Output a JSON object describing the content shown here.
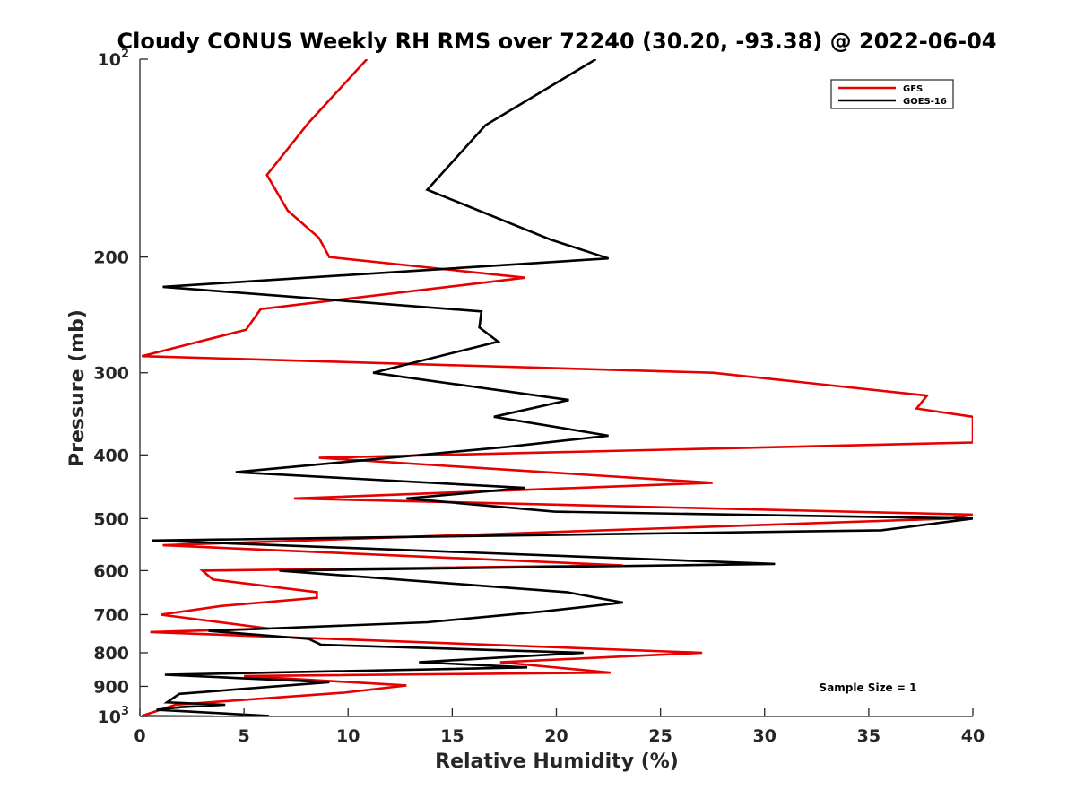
{
  "chart_data": {
    "type": "line",
    "title": "Cloudy CONUS Weekly RH RMS over 72240 (30.20, -93.38) @ 2022-06-04",
    "xlabel": "Relative Humidity (%)",
    "ylabel": "Pressure (mb)",
    "xlim": [
      0,
      40
    ],
    "ylim": [
      100,
      1000
    ],
    "yscale": "log",
    "y_reversed": true,
    "x_ticks": [
      0,
      5,
      10,
      15,
      20,
      25,
      30,
      35,
      40
    ],
    "x_tick_labels": [
      "0",
      "5",
      "10",
      "15",
      "20",
      "25",
      "30",
      "35",
      "40"
    ],
    "y_ticks": [
      100,
      200,
      300,
      400,
      500,
      600,
      700,
      800,
      900,
      1000
    ],
    "y_tick_labels": [
      {
        "base": "10",
        "exp": "2"
      },
      {
        "base": "200",
        "exp": ""
      },
      {
        "base": "300",
        "exp": ""
      },
      {
        "base": "400",
        "exp": ""
      },
      {
        "base": "500",
        "exp": ""
      },
      {
        "base": "600",
        "exp": ""
      },
      {
        "base": "700",
        "exp": ""
      },
      {
        "base": "800",
        "exp": ""
      },
      {
        "base": "900",
        "exp": ""
      },
      {
        "base": "10",
        "exp": "3"
      }
    ],
    "legend": {
      "position": "top-right",
      "entries": [
        {
          "label": "GFS",
          "color": "#e60000"
        },
        {
          "label": "GOES-16",
          "color": "#000000"
        }
      ]
    },
    "annotation": "Sample Size = 1",
    "series": [
      {
        "name": "GFS",
        "color": "#e60000",
        "points": [
          [
            10.9,
            100
          ],
          [
            8.1,
            125
          ],
          [
            6.1,
            150
          ],
          [
            7.1,
            170
          ],
          [
            8.6,
            187
          ],
          [
            9.1,
            200
          ],
          [
            18.5,
            215
          ],
          [
            5.8,
            240
          ],
          [
            5.1,
            258
          ],
          [
            0.1,
            283
          ],
          [
            27.5,
            300
          ],
          [
            37.8,
            325
          ],
          [
            37.3,
            340
          ],
          [
            40.0,
            350
          ],
          [
            40.0,
            383
          ],
          [
            8.6,
            404
          ],
          [
            27.5,
            441
          ],
          [
            7.4,
            466
          ],
          [
            40.0,
            493
          ],
          [
            38.9,
            500
          ],
          [
            1.1,
            549
          ],
          [
            23.2,
            589
          ],
          [
            3.0,
            600
          ],
          [
            3.5,
            619
          ],
          [
            8.5,
            647
          ],
          [
            8.5,
            660
          ],
          [
            3.9,
            679
          ],
          [
            1.0,
            700
          ],
          [
            6.2,
            735
          ],
          [
            0.5,
            744
          ],
          [
            27.0,
            800
          ],
          [
            17.3,
            827
          ],
          [
            22.6,
            858
          ],
          [
            5.0,
            868
          ],
          [
            12.8,
            897
          ],
          [
            9.8,
            920
          ],
          [
            1.7,
            960
          ],
          [
            0.1,
            998
          ],
          [
            3.5,
            1000
          ]
        ]
      },
      {
        "name": "GOES-16",
        "color": "#000000",
        "points": [
          [
            21.9,
            100
          ],
          [
            16.6,
            126
          ],
          [
            13.8,
            158
          ],
          [
            19.7,
            188
          ],
          [
            22.5,
            201
          ],
          [
            1.1,
            222
          ],
          [
            16.4,
            242
          ],
          [
            16.3,
            256
          ],
          [
            17.2,
            269
          ],
          [
            11.2,
            300
          ],
          [
            20.6,
            330
          ],
          [
            17.0,
            350
          ],
          [
            22.5,
            374
          ],
          [
            17.6,
            389
          ],
          [
            4.6,
            425
          ],
          [
            18.5,
            449
          ],
          [
            12.8,
            466
          ],
          [
            19.9,
            488
          ],
          [
            40.0,
            500
          ],
          [
            35.6,
            521
          ],
          [
            0.6,
            540
          ],
          [
            30.5,
            586
          ],
          [
            6.7,
            600
          ],
          [
            20.5,
            647
          ],
          [
            23.2,
            671
          ],
          [
            19.4,
            692
          ],
          [
            13.8,
            719
          ],
          [
            3.3,
            741
          ],
          [
            8.1,
            762
          ],
          [
            8.7,
            778
          ],
          [
            21.3,
            800
          ],
          [
            13.4,
            827
          ],
          [
            18.6,
            842
          ],
          [
            1.2,
            864
          ],
          [
            9.1,
            887
          ],
          [
            1.9,
            924
          ],
          [
            1.3,
            952
          ],
          [
            4.1,
            960
          ],
          [
            2.0,
            968
          ],
          [
            0.8,
            977
          ],
          [
            6.2,
            998
          ]
        ]
      }
    ]
  }
}
